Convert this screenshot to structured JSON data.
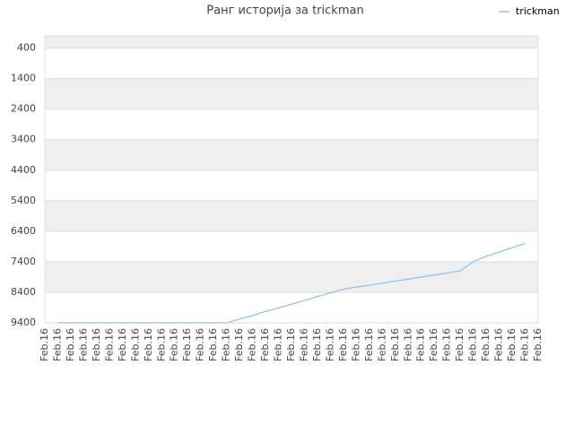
{
  "chart_data": {
    "type": "line",
    "title": "Ранг историја за trickman",
    "categories": [
      "Feb.16",
      "Feb.16",
      "Feb.16",
      "Feb.16",
      "Feb.16",
      "Feb.16",
      "Feb.16",
      "Feb.16",
      "Feb.16",
      "Feb.16",
      "Feb.16",
      "Feb.16",
      "Feb.16",
      "Feb.16",
      "Feb.16",
      "Feb.16",
      "Feb.16",
      "Feb.16",
      "Feb.16",
      "Feb.16",
      "Feb.16",
      "Feb.16",
      "Feb.16",
      "Feb.16",
      "Feb.16",
      "Feb.16",
      "Feb.16",
      "Feb.16",
      "Feb.16",
      "Feb.16",
      "Feb.16",
      "Feb.16",
      "Feb.16",
      "Feb.16",
      "Feb.16",
      "Feb.16",
      "Feb.16",
      "Feb.16",
      "Feb.16"
    ],
    "series": [
      {
        "name": "trickman",
        "color": "#90c4ec",
        "values": [
          null,
          9400,
          9400,
          9400,
          9400,
          9400,
          9400,
          9400,
          9400,
          9400,
          9400,
          9400,
          9400,
          9400,
          9400,
          9280,
          9160,
          9030,
          8910,
          8790,
          8670,
          8540,
          8420,
          8300,
          8230,
          8170,
          8100,
          8030,
          7970,
          7900,
          7830,
          7770,
          7700,
          7400,
          7220,
          7080,
          6940,
          6800,
          null
        ]
      }
    ],
    "ylim": [
      9400,
      0
    ],
    "yticks": [
      400,
      1400,
      2400,
      3400,
      4400,
      5400,
      6400,
      7400,
      8400,
      9400
    ],
    "grid": true,
    "legend": "top-right"
  }
}
